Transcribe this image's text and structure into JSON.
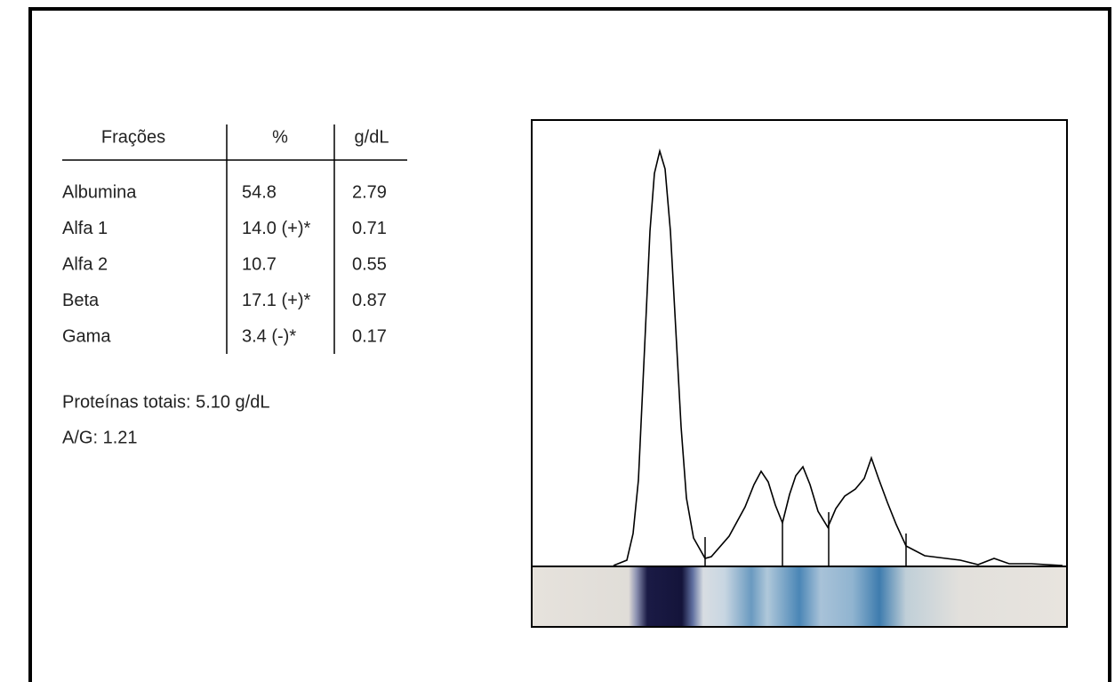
{
  "table": {
    "header": [
      "Frações",
      "%",
      "g/dL"
    ],
    "rows": [
      [
        "Albumina",
        "54.8",
        "2.79"
      ],
      [
        "Alfa 1",
        "14.0 (+)*",
        "0.71"
      ],
      [
        "Alfa 2",
        "10.7",
        "0.55"
      ],
      [
        "Beta",
        "17.1 (+)*",
        "0.87"
      ],
      [
        "Gama",
        "3.4 (-)*",
        "0.17"
      ]
    ]
  },
  "summary": {
    "total_protein": "Proteínas totais: 5.10 g/dL",
    "ag_ratio": "A/G: 1.21"
  }
}
